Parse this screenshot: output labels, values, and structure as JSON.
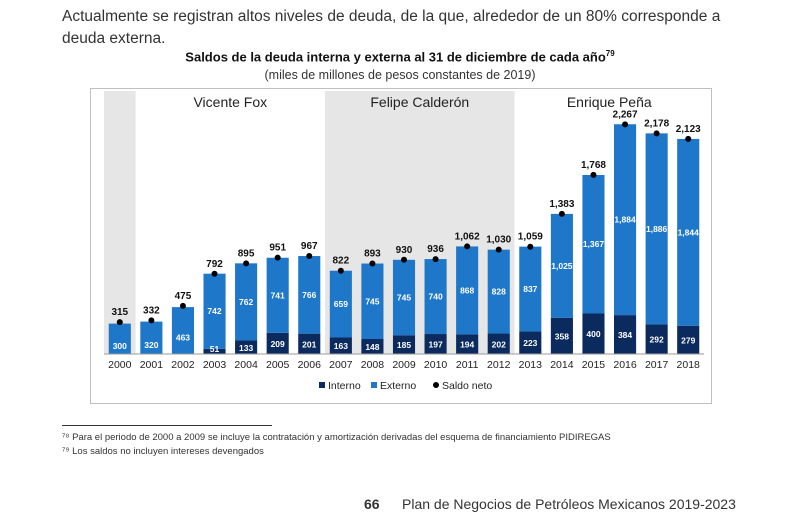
{
  "intro_text": "Actualmente se registran altos niveles de deuda, de la que, alrededor de un 80% corresponde a deuda externa.",
  "chart_data": {
    "type": "bar",
    "title": "Saldos de la deuda interna y externa al 31 de diciembre de cada año",
    "title_footnote_ref": "79",
    "subtitle": "(miles de millones de pesos constantes de 2019)",
    "categories": [
      "2000",
      "2001",
      "2002",
      "2003",
      "2004",
      "2005",
      "2006",
      "2007",
      "2008",
      "2009",
      "2010",
      "2011",
      "2012",
      "2013",
      "2014",
      "2015",
      "2016",
      "2017",
      "2018"
    ],
    "series": [
      {
        "name": "Interno",
        "color": "#0b2a5e",
        "values": [
          0,
          0,
          0,
          51,
          133,
          209,
          201,
          163,
          148,
          185,
          197,
          194,
          202,
          223,
          358,
          400,
          384,
          292,
          279
        ],
        "labels": [
          "",
          "",
          "",
          "51",
          "133",
          "209",
          "201",
          "163",
          "148",
          "185",
          "197",
          "194",
          "202",
          "223",
          "358",
          "400",
          "384",
          "292",
          "279"
        ]
      },
      {
        "name": "Externo",
        "color": "#1f77c9",
        "values": [
          300,
          320,
          463,
          742,
          762,
          741,
          766,
          659,
          745,
          745,
          740,
          868,
          828,
          837,
          1025,
          1367,
          1884,
          1886,
          1844
        ],
        "labels": [
          "300",
          "320",
          "463",
          "742",
          "762",
          "741",
          "766",
          "659",
          "745",
          "745",
          "740",
          "868",
          "828",
          "837",
          "1,025",
          "1,367",
          "1,884",
          "1,886",
          "1,844"
        ]
      },
      {
        "name": "Saldo neto",
        "color": "#000000",
        "values": [
          315,
          332,
          475,
          792,
          895,
          951,
          967,
          822,
          893,
          930,
          936,
          1062,
          1030,
          1059,
          1383,
          1768,
          2267,
          2178,
          2123
        ],
        "labels": [
          "315",
          "332",
          "475",
          "792",
          "895",
          "951",
          "967",
          "822",
          "893",
          "930",
          "936",
          "1,062",
          "1,030",
          "1,059",
          "1,383",
          "1,768",
          "2,267",
          "2,178",
          "2,123"
        ]
      }
    ],
    "periods": [
      {
        "label": "Vicente Fox",
        "from": "2001",
        "to": "2006",
        "shaded": false
      },
      {
        "label": "Felipe Calderón",
        "from": "2007",
        "to": "2012",
        "shaded": true
      },
      {
        "label": "Enrique Peña",
        "from": "2013",
        "to": "2018",
        "shaded": false
      }
    ],
    "legend_position": "bottom",
    "ylim": [
      0,
      2300
    ],
    "grid": false
  },
  "footnotes": [
    "⁷⁸ Para el periodo de 2000 a 2009 se incluye la contratación y amortización derivadas del esquema de financiamiento PIDIREGAS",
    "⁷⁹ Los saldos no incluyen intereses devengados"
  ],
  "footer": {
    "page_number": "66",
    "document_title": "Plan de Negocios de Petróleos Mexicanos 2019-2023"
  }
}
